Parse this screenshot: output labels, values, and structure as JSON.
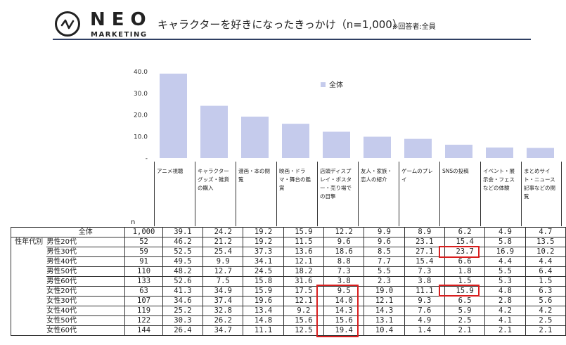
{
  "header": {
    "logo_main": "NEO",
    "logo_sub": "MARKETING",
    "title": "キャラクターを好きになったきっかけ（n=1,000）",
    "note": "※回答者:全員"
  },
  "colors": {
    "bar": "#c5cbec",
    "highlight": "#d81e1e",
    "rule": "#2f3e63"
  },
  "chart_data": {
    "type": "bar",
    "categories": [
      "アニメ視聴",
      "キャラクターグッズ・雑貨の購入",
      "漫画・本の閲覧",
      "映画・ドラマ・舞台の鑑賞",
      "店頭ディスプレイ・ポスター・売り場での目撃",
      "友人・家族・恋人の紹介",
      "ゲームのプレイ",
      "SNSの投稿",
      "イベント・展示会・フェスなどの体験",
      "まとめサイト・ニュース記事などの閲覧"
    ],
    "series": [
      {
        "name": "全体",
        "values": [
          39.1,
          24.2,
          19.2,
          15.9,
          12.2,
          9.9,
          8.9,
          6.2,
          4.9,
          4.7
        ]
      }
    ],
    "y_ticks": [
      "-",
      "10.0",
      "20.0",
      "30.0",
      "40.0"
    ],
    "ylim": [
      0,
      40
    ],
    "legend_position": "top-center"
  },
  "table": {
    "n_header": "n",
    "group_label": "性年代別",
    "rows": [
      {
        "label": "全体",
        "n": "1,000",
        "values": [
          "39.1",
          "24.2",
          "19.2",
          "15.9",
          "12.2",
          "9.9",
          "8.9",
          "6.2",
          "4.9",
          "4.7"
        ]
      },
      {
        "label": "男性20代",
        "n": "52",
        "values": [
          "46.2",
          "21.2",
          "19.2",
          "11.5",
          "9.6",
          "9.6",
          "23.1",
          "15.4",
          "5.8",
          "13.5"
        ]
      },
      {
        "label": "男性30代",
        "n": "59",
        "values": [
          "52.5",
          "25.4",
          "37.3",
          "13.6",
          "18.6",
          "8.5",
          "27.1",
          "23.7",
          "16.9",
          "10.2"
        ]
      },
      {
        "label": "男性40代",
        "n": "91",
        "values": [
          "49.5",
          "9.9",
          "34.1",
          "12.1",
          "8.8",
          "7.7",
          "15.4",
          "6.6",
          "4.4",
          "4.4"
        ]
      },
      {
        "label": "男性50代",
        "n": "110",
        "values": [
          "48.2",
          "12.7",
          "24.5",
          "18.2",
          "7.3",
          "5.5",
          "7.3",
          "1.8",
          "5.5",
          "6.4"
        ]
      },
      {
        "label": "男性60代",
        "n": "133",
        "values": [
          "52.6",
          "7.5",
          "15.8",
          "31.6",
          "3.8",
          "2.3",
          "3.8",
          "1.5",
          "5.3",
          "1.5"
        ]
      },
      {
        "label": "女性20代",
        "n": "63",
        "values": [
          "41.3",
          "34.9",
          "15.9",
          "17.5",
          "9.5",
          "19.0",
          "11.1",
          "15.9",
          "4.8",
          "6.3"
        ]
      },
      {
        "label": "女性30代",
        "n": "107",
        "values": [
          "34.6",
          "37.4",
          "19.6",
          "12.1",
          "14.0",
          "12.1",
          "9.3",
          "6.5",
          "2.8",
          "5.6"
        ]
      },
      {
        "label": "女性40代",
        "n": "119",
        "values": [
          "25.2",
          "32.8",
          "13.4",
          "9.2",
          "14.3",
          "14.3",
          "7.6",
          "5.9",
          "4.2",
          "4.2"
        ]
      },
      {
        "label": "女性50代",
        "n": "122",
        "values": [
          "30.3",
          "26.2",
          "14.8",
          "15.6",
          "15.6",
          "13.1",
          "4.9",
          "2.5",
          "4.1",
          "2.5"
        ]
      },
      {
        "label": "女性60代",
        "n": "144",
        "values": [
          "26.4",
          "34.7",
          "11.1",
          "12.5",
          "19.4",
          "10.4",
          "1.4",
          "2.1",
          "2.1",
          "2.1"
        ]
      }
    ]
  }
}
